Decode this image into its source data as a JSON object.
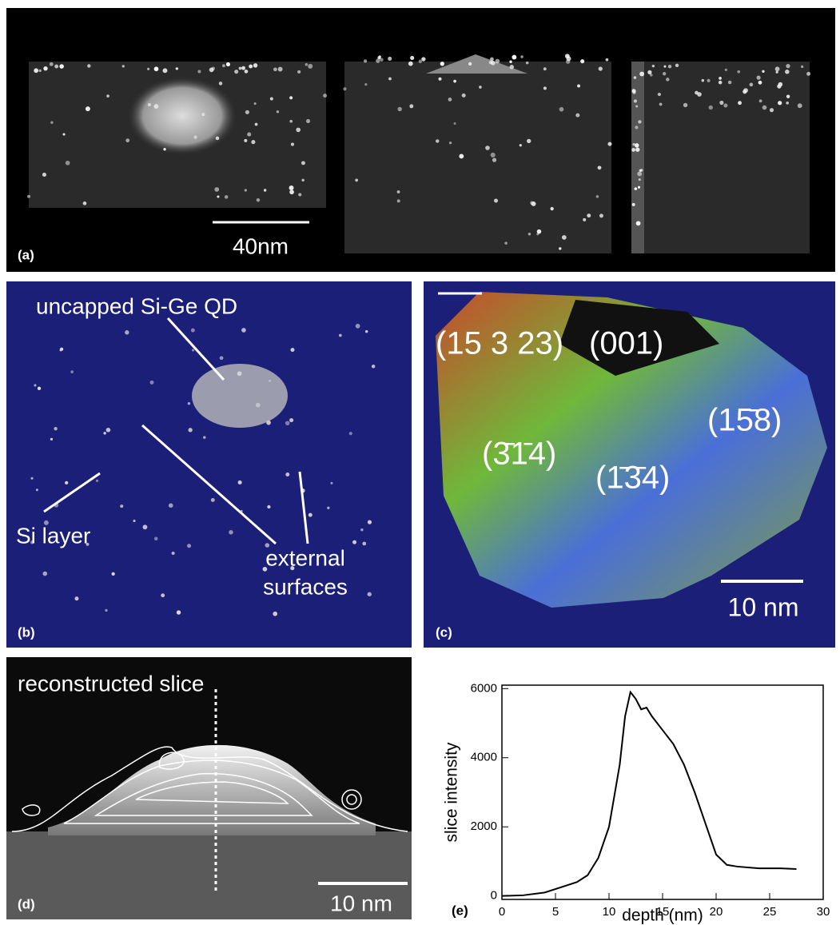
{
  "panels": {
    "a": {
      "label": "(a)",
      "scale_bar": "40nm"
    },
    "b": {
      "label": "(b)",
      "qd": "uncapped Si-Ge QD",
      "si_layer": "Si layer",
      "external": [
        "external",
        "surfaces"
      ]
    },
    "c": {
      "label": "(c)",
      "facets": [
        "(15 3 23)",
        "(001)",
        "(3̄1̄4)",
        "(1̄3̄4)",
        "(15̄8)"
      ],
      "scale_bar": "10 nm"
    },
    "d": {
      "label": "(d)",
      "title": "reconstructed slice",
      "scale_bar": "10 nm"
    },
    "e": {
      "label": "(e)"
    }
  },
  "chart_data": {
    "type": "line",
    "ylabel": "slice intensity",
    "xlabel": "depth (nm)",
    "color": "#000000",
    "x": [
      0,
      2,
      4,
      6,
      7,
      8,
      9,
      10,
      11,
      11.5,
      12,
      12.5,
      13,
      13.5,
      14,
      15,
      16,
      17,
      18,
      19,
      20,
      21,
      22,
      24,
      26,
      27.5
    ],
    "values": [
      0,
      20,
      100,
      300,
      400,
      600,
      1100,
      2000,
      3800,
      5200,
      5900,
      5700,
      5400,
      5450,
      5200,
      4800,
      4400,
      3800,
      3000,
      2100,
      1200,
      900,
      850,
      800,
      800,
      780
    ],
    "xlim": [
      0,
      30
    ],
    "ylim": [
      -100,
      6100
    ],
    "xticks": [
      0,
      5,
      10,
      15,
      20,
      25,
      30
    ],
    "yticks": [
      0,
      2000,
      4000,
      6000
    ]
  }
}
